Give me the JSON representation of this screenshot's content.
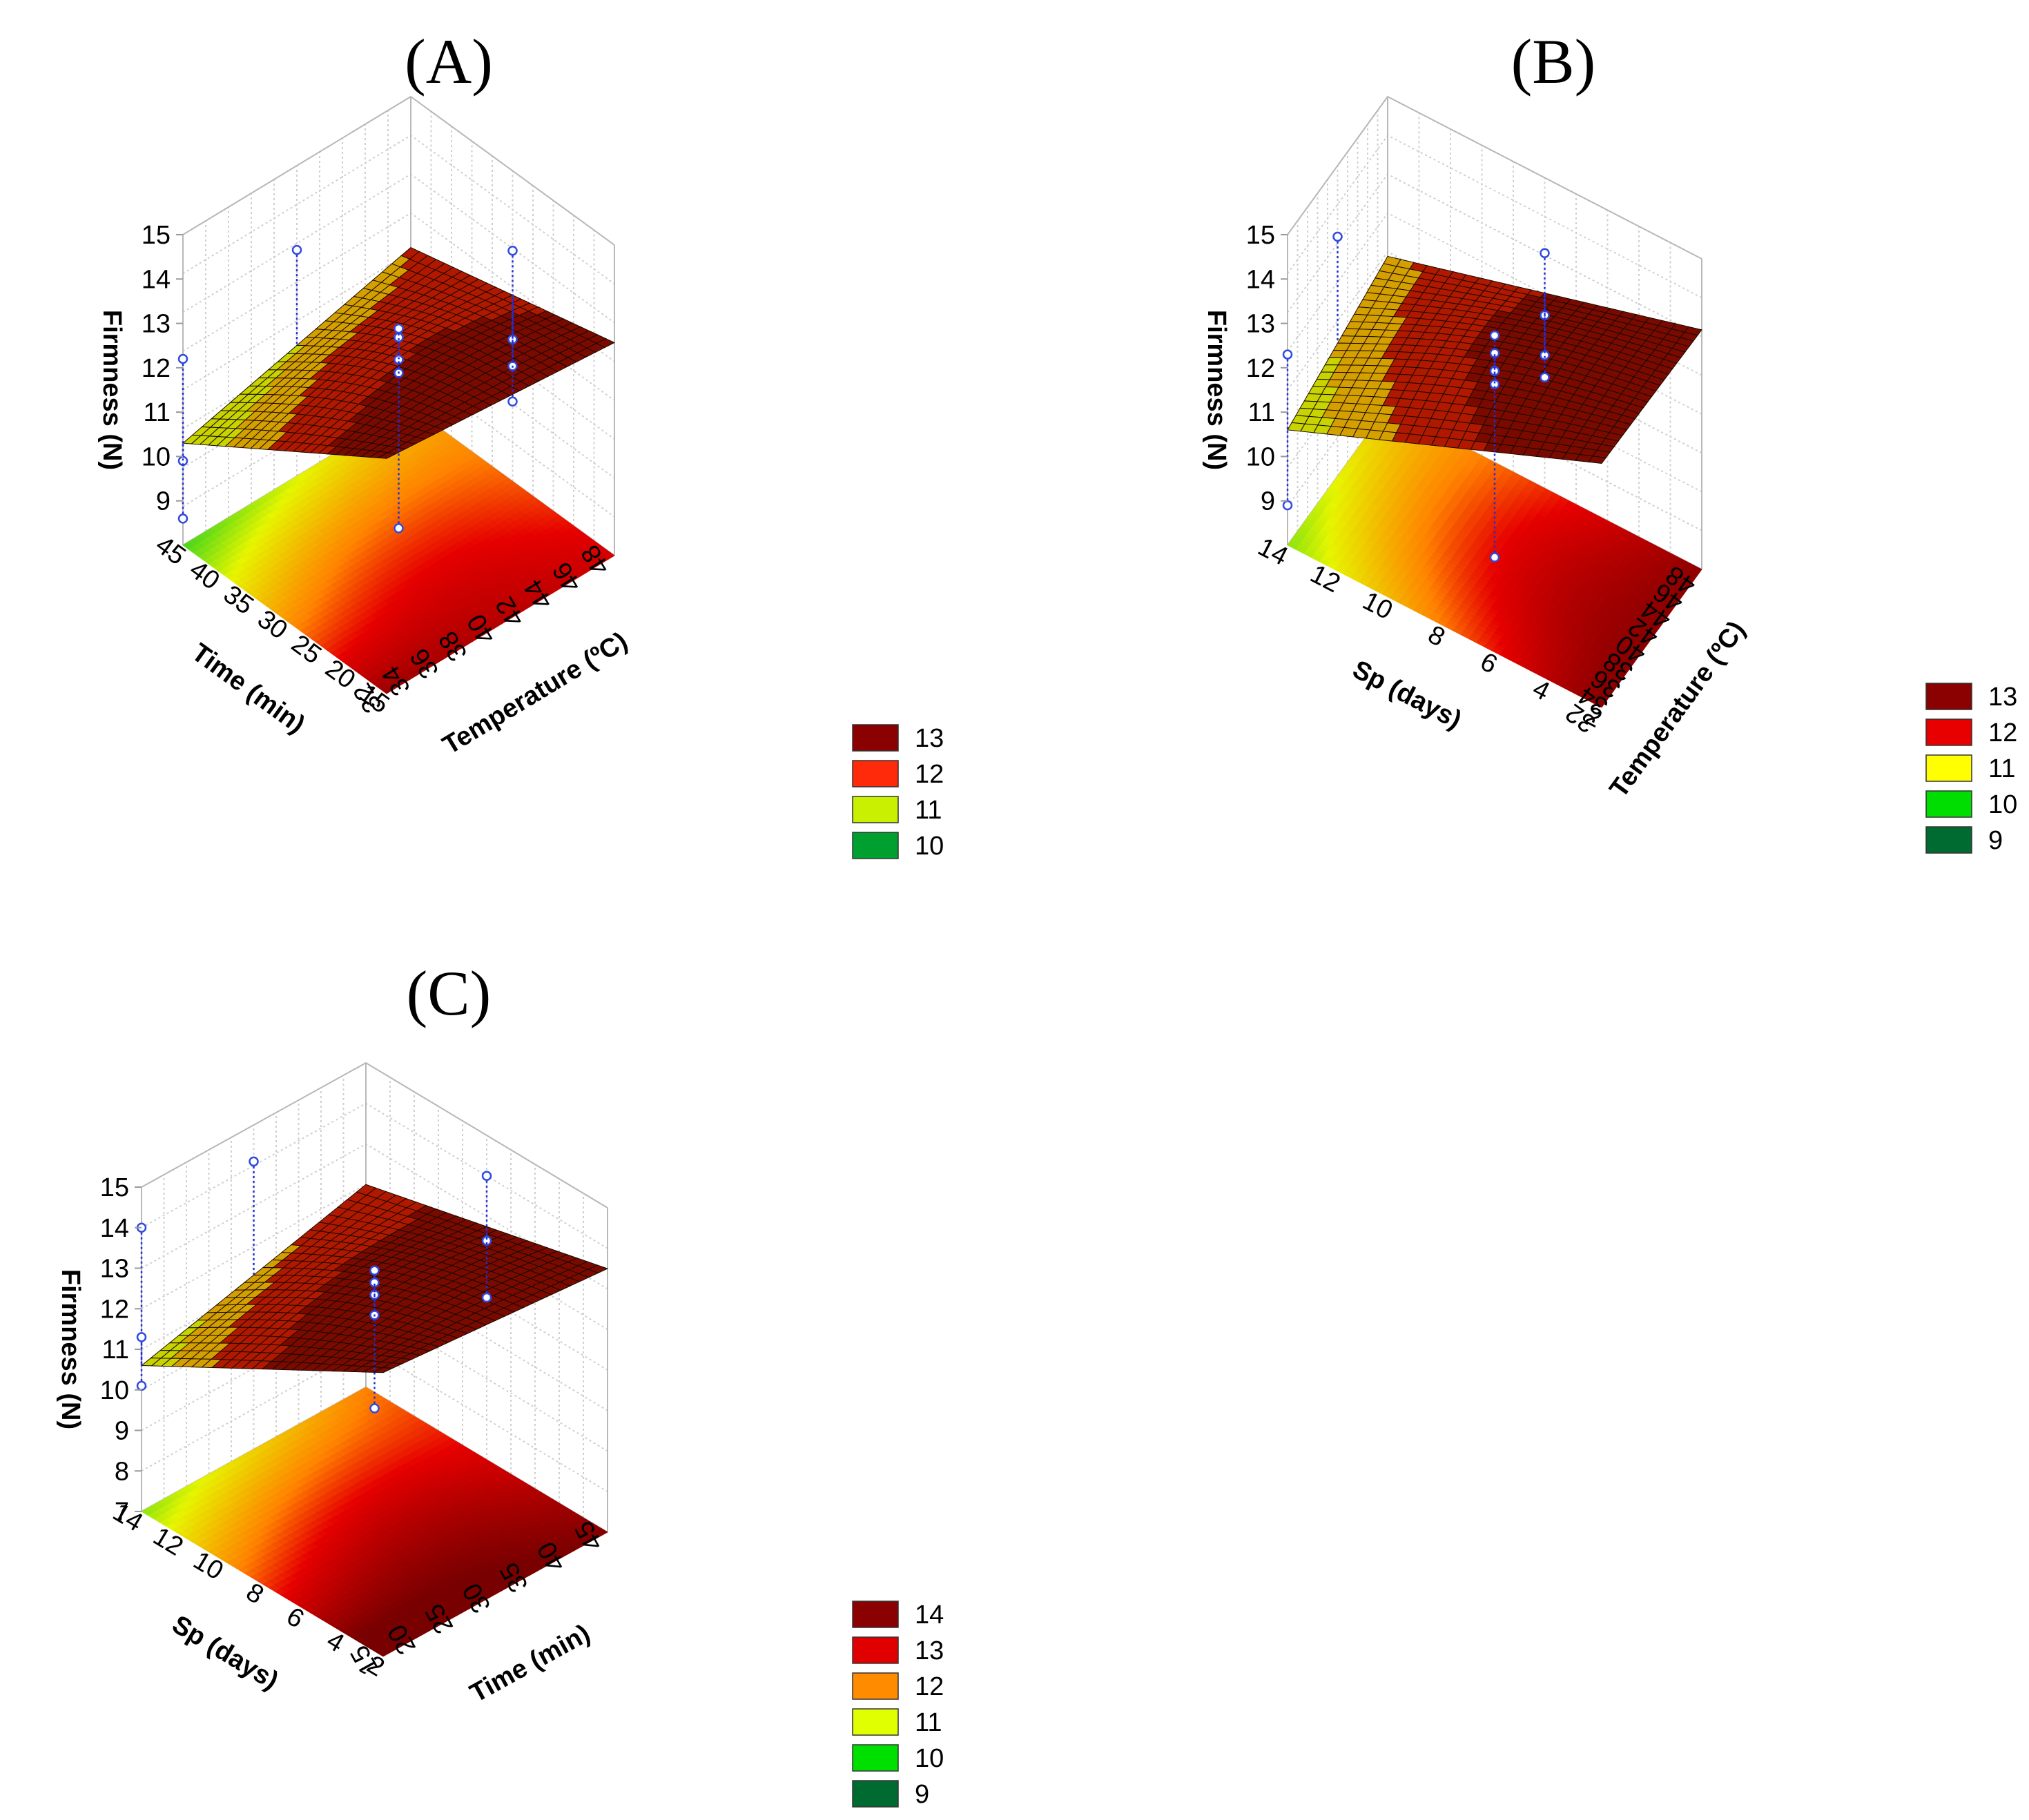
{
  "panels": [
    {
      "label": "(A)",
      "z_label": "Firmness (N)",
      "x_label": "Temperature (ºC)",
      "y_label": "Time (min)",
      "z_ticks": [
        "15",
        "14",
        "13",
        "12",
        "11",
        "10",
        "9"
      ],
      "x_ticks": [
        "32",
        "34",
        "36",
        "38",
        "40",
        "42",
        "44",
        "46",
        "48"
      ],
      "y_ticks": [
        "15",
        "20",
        "25",
        "30",
        "35",
        "40",
        "45"
      ],
      "legend": [
        {
          "label": "13",
          "color": "#8b0000"
        },
        {
          "label": "12",
          "color": "#ff2a0a"
        },
        {
          "label": "11",
          "color": "#c8f000"
        },
        {
          "label": "10",
          "color": "#00a030"
        }
      ]
    },
    {
      "label": "(B)",
      "z_label": "Firmness (N)",
      "x_label": "Temperature (ºC)",
      "y_label": "Sp (days)",
      "z_ticks": [
        "15",
        "14",
        "13",
        "12",
        "11",
        "10",
        "9"
      ],
      "x_ticks": [
        "32",
        "34",
        "36",
        "38",
        "40",
        "42",
        "44",
        "46",
        "48"
      ],
      "y_ticks": [
        "2",
        "4",
        "6",
        "8",
        "10",
        "12",
        "14"
      ],
      "legend": [
        {
          "label": "13",
          "color": "#8b0000"
        },
        {
          "label": "12",
          "color": "#e80000"
        },
        {
          "label": "11",
          "color": "#ffff00"
        },
        {
          "label": "10",
          "color": "#00dd00"
        },
        {
          "label": "9",
          "color": "#006b30"
        }
      ]
    },
    {
      "label": "(C)",
      "z_label": "Firmness (N)",
      "x_label": "Time (min)",
      "y_label": "Sp (days)",
      "z_ticks": [
        "15",
        "14",
        "13",
        "12",
        "11",
        "10",
        "9",
        "8",
        "7"
      ],
      "x_ticks": [
        "15",
        "20",
        "25",
        "30",
        "35",
        "40",
        "45"
      ],
      "y_ticks": [
        "2",
        "4",
        "6",
        "8",
        "10",
        "12",
        "14"
      ],
      "legend": [
        {
          "label": "14",
          "color": "#8b0000"
        },
        {
          "label": "13",
          "color": "#e00000"
        },
        {
          "label": "12",
          "color": "#ff8c00"
        },
        {
          "label": "11",
          "color": "#e0ff00"
        },
        {
          "label": "10",
          "color": "#00e000"
        },
        {
          "label": "9",
          "color": "#006b30"
        }
      ]
    }
  ],
  "chart_data": [
    {
      "type": "surface3d",
      "title": "(A)",
      "xlabel": "Temperature (ºC)",
      "ylabel": "Time (min)",
      "zlabel": "Firmness (N)",
      "xlim": [
        32,
        48
      ],
      "ylim": [
        15,
        45
      ],
      "zlim": [
        8,
        15
      ],
      "grid": true,
      "legend_position": "bottom-right",
      "corners": {
        "x_min_y_min": 13.3,
        "x_max_y_min": 12.8,
        "x_min_y_max": 10.3,
        "x_max_y_max": 11.6
      },
      "points": [
        {
          "x": 32,
          "y": 45,
          "z": 12.2
        },
        {
          "x": 32,
          "y": 45,
          "z": 9.9
        },
        {
          "x": 32,
          "y": 45,
          "z": 8.6
        },
        {
          "x": 40,
          "y": 45,
          "z": 13.1
        },
        {
          "x": 40,
          "y": 30,
          "z": 12.8
        },
        {
          "x": 40,
          "y": 30,
          "z": 12.3
        },
        {
          "x": 40,
          "y": 30,
          "z": 13.0
        },
        {
          "x": 40,
          "y": 30,
          "z": 12.0
        },
        {
          "x": 40,
          "y": 30,
          "z": 8.5
        },
        {
          "x": 48,
          "y": 30,
          "z": 13.2
        },
        {
          "x": 48,
          "y": 30,
          "z": 11.2
        },
        {
          "x": 48,
          "y": 30,
          "z": 10.6
        },
        {
          "x": 48,
          "y": 30,
          "z": 9.8
        }
      ]
    },
    {
      "type": "surface3d",
      "title": "(B)",
      "xlabel": "Temperature (ºC)",
      "ylabel": "Sp (days)",
      "zlabel": "Firmness (N)",
      "xlim": [
        32,
        48
      ],
      "ylim": [
        2,
        14
      ],
      "zlim": [
        8,
        15
      ],
      "grid": true,
      "legend_position": "bottom-right",
      "corners": {
        "x_min_y_min": 13.5,
        "x_max_y_min": 13.4,
        "x_min_y_max": 10.6,
        "x_max_y_max": 11.4
      },
      "points": [
        {
          "x": 32,
          "y": 14,
          "z": 12.3
        },
        {
          "x": 32,
          "y": 14,
          "z": 8.9
        },
        {
          "x": 40,
          "y": 14,
          "z": 13.4
        },
        {
          "x": 40,
          "y": 8,
          "z": 13.0
        },
        {
          "x": 40,
          "y": 8,
          "z": 12.6
        },
        {
          "x": 40,
          "y": 8,
          "z": 12.2
        },
        {
          "x": 40,
          "y": 8,
          "z": 11.9
        },
        {
          "x": 40,
          "y": 8,
          "z": 8.0
        },
        {
          "x": 48,
          "y": 8,
          "z": 13.3
        },
        {
          "x": 48,
          "y": 8,
          "z": 11.9
        },
        {
          "x": 48,
          "y": 8,
          "z": 11.0
        },
        {
          "x": 48,
          "y": 8,
          "z": 10.5
        }
      ]
    },
    {
      "type": "surface3d",
      "title": "(C)",
      "xlabel": "Time (min)",
      "ylabel": "Sp (days)",
      "zlabel": "Firmness (N)",
      "xlim": [
        15,
        45
      ],
      "ylim": [
        2,
        14
      ],
      "zlim": [
        7,
        15
      ],
      "grid": true,
      "legend_position": "bottom-right",
      "corners": {
        "x_min_y_min": 14.0,
        "x_max_y_min": 13.5,
        "x_min_y_max": 10.6,
        "x_max_y_max": 12.0
      },
      "points": [
        {
          "x": 15,
          "y": 14,
          "z": 14.0
        },
        {
          "x": 15,
          "y": 14,
          "z": 11.3
        },
        {
          "x": 15,
          "y": 14,
          "z": 10.1
        },
        {
          "x": 30,
          "y": 14,
          "z": 14.1
        },
        {
          "x": 30,
          "y": 8,
          "z": 13.2
        },
        {
          "x": 30,
          "y": 8,
          "z": 12.9
        },
        {
          "x": 30,
          "y": 8,
          "z": 12.6
        },
        {
          "x": 30,
          "y": 8,
          "z": 12.1
        },
        {
          "x": 30,
          "y": 8,
          "z": 9.8
        },
        {
          "x": 45,
          "y": 8,
          "z": 14.0
        },
        {
          "x": 45,
          "y": 8,
          "z": 12.4
        },
        {
          "x": 45,
          "y": 8,
          "z": 11.0
        }
      ]
    }
  ]
}
